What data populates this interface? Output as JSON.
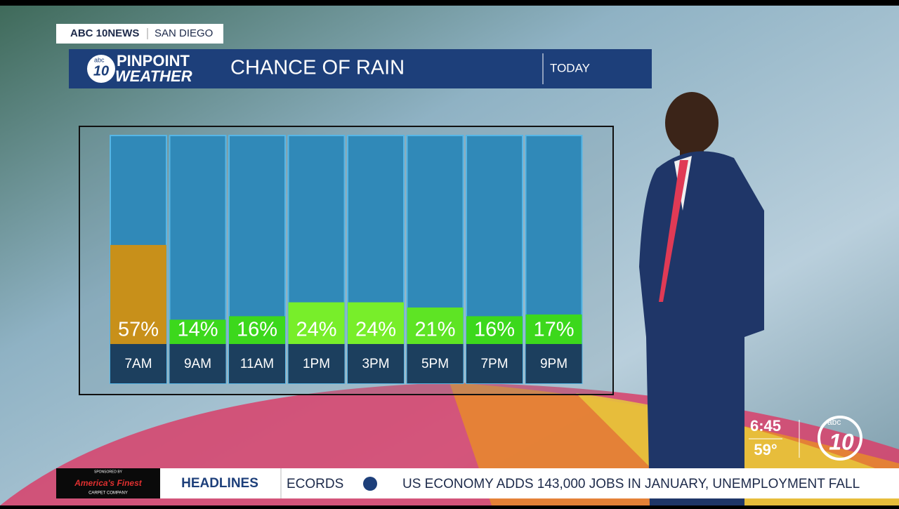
{
  "brand": {
    "station": "ABC 10NEWS",
    "city": "SAN DIEGO",
    "logo_top": "PINPOINT",
    "logo_bottom": "WEATHER",
    "logo_abc": "abc",
    "logo_num": "10"
  },
  "panel": {
    "period": "TODAY"
  },
  "chart_data": {
    "type": "bar",
    "title": "CHANCE OF RAIN",
    "categories": [
      "7AM",
      "9AM",
      "11AM",
      "1PM",
      "3PM",
      "5PM",
      "7PM",
      "9PM"
    ],
    "values": [
      57,
      14,
      16,
      24,
      24,
      21,
      16,
      17
    ],
    "value_labels": [
      "57%",
      "14%",
      "16%",
      "24%",
      "24%",
      "21%",
      "16%",
      "17%"
    ],
    "colors": [
      "#c8901a",
      "#3cd81c",
      "#3cd81c",
      "#78ee2a",
      "#78ee2a",
      "#5ee424",
      "#3cd81c",
      "#3cd81c"
    ],
    "ylim": [
      0,
      120
    ]
  },
  "bug": {
    "time": "6:45",
    "temp": "59°",
    "logo_abc": "abc",
    "logo_num": "10"
  },
  "ticker": {
    "sponsor": "SPONSORED BY",
    "sponsor_name": "America's Finest",
    "sponsor_sub": "CARPET COMPANY",
    "section": "HEADLINES",
    "prev": "ECORDS",
    "headline": "US ECONOMY ADDS 143,000 JOBS IN JANUARY, UNEMPLOYMENT FALL"
  }
}
